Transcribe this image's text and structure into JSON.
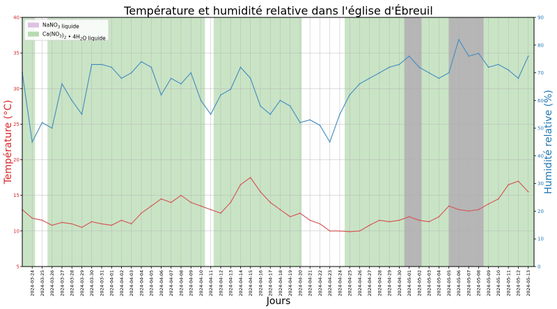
{
  "chart_data": {
    "type": "line",
    "title": "Température et humidité relative dans l'église d'Ébreuil",
    "xlabel": "Jours",
    "ylabel_left": "Température (°C)",
    "ylabel_right": "Humidité relative (%)",
    "ylim_left": [
      5,
      40
    ],
    "ylim_right": [
      0,
      90
    ],
    "yticks_left": [
      "5",
      "10",
      "15",
      "20",
      "25",
      "30",
      "35",
      "40"
    ],
    "yticks_right": [
      "0",
      "10",
      "20",
      "30",
      "40",
      "50",
      "60",
      "70",
      "80",
      "90"
    ],
    "grid": true,
    "legend_position": "top-left",
    "legend": [
      {
        "label": "NaNO",
        "sub": "3",
        "suffix": " liquide",
        "color": "#dfc1e3"
      },
      {
        "label": "Ca(NO",
        "sub": "3",
        "mid": ")",
        "sub2": "2",
        "suffix": " • 4H",
        "sub3": "2",
        "tail": "O liquide",
        "color": "#b7dbb1"
      }
    ],
    "colors": {
      "temperature": "#d45a5a",
      "humidity": "#4a90c0",
      "left_axis": "#d62728",
      "right_axis": "#1f77b4",
      "ca_zone": "#b7dbb1",
      "nano3_zone": "#a9a9a9"
    },
    "x_dates": [
      "2024-03-24",
      "2024-03-25",
      "2024-03-26",
      "2024-03-27",
      "2024-03-28",
      "2024-03-29",
      "2024-03-30",
      "2024-03-31",
      "2024-04-01",
      "2024-04-02",
      "2024-04-03",
      "2024-04-04",
      "2024-04-05",
      "2024-04-06",
      "2024-04-07",
      "2024-04-08",
      "2024-04-09",
      "2024-04-10",
      "2024-04-11",
      "2024-04-12",
      "2024-04-13",
      "2024-04-14",
      "2024-04-15",
      "2024-04-16",
      "2024-04-17",
      "2024-04-18",
      "2024-04-19",
      "2024-04-20",
      "2024-04-21",
      "2024-04-22",
      "2024-04-23",
      "2024-04-24",
      "2024-04-25",
      "2024-04-26",
      "2024-04-27",
      "2024-04-28",
      "2024-04-29",
      "2024-04-30",
      "2024-05-01",
      "2024-05-02",
      "2024-05-03",
      "2024-05-04",
      "2024-05-05",
      "2024-05-06",
      "2024-05-07",
      "2024-05-08",
      "2024-05-09",
      "2024-05-10",
      "2024-05-11",
      "2024-05-12",
      "2024-05-13"
    ],
    "x_range": [
      "2024-03-23T00:00",
      "2024-05-13T14:00"
    ],
    "ca_zones": [
      [
        "2024-03-23T00:00",
        "2024-03-24T07:00"
      ],
      [
        "2024-03-25T13:00",
        "2024-04-10T10:00"
      ],
      [
        "2024-04-11T07:00",
        "2024-04-20T04:00"
      ],
      [
        "2024-04-24T12:00",
        "2024-04-30T12:00"
      ],
      [
        "2024-05-02T06:00",
        "2024-05-05T00:00"
      ],
      [
        "2024-05-08T12:00",
        "2024-05-13T14:00"
      ]
    ],
    "nano3_zones": [
      [
        "2024-04-30T12:00",
        "2024-05-02T06:00"
      ],
      [
        "2024-05-05T00:00",
        "2024-05-08T12:00"
      ]
    ],
    "temperature_series": {
      "x": [
        "2024-03-23",
        "2024-03-24",
        "2024-03-25",
        "2024-03-26",
        "2024-03-27",
        "2024-03-28",
        "2024-03-29",
        "2024-03-30",
        "2024-03-31",
        "2024-04-01",
        "2024-04-02",
        "2024-04-03",
        "2024-04-04",
        "2024-04-05",
        "2024-04-06",
        "2024-04-07",
        "2024-04-08",
        "2024-04-09",
        "2024-04-10",
        "2024-04-11",
        "2024-04-12",
        "2024-04-13",
        "2024-04-14",
        "2024-04-15",
        "2024-04-16",
        "2024-04-17",
        "2024-04-18",
        "2024-04-19",
        "2024-04-20",
        "2024-04-21",
        "2024-04-22",
        "2024-04-23",
        "2024-04-24",
        "2024-04-25",
        "2024-04-26",
        "2024-04-27",
        "2024-04-28",
        "2024-04-29",
        "2024-04-30",
        "2024-05-01",
        "2024-05-02",
        "2024-05-03",
        "2024-05-04",
        "2024-05-05",
        "2024-05-06",
        "2024-05-07",
        "2024-05-08",
        "2024-05-09",
        "2024-05-10",
        "2024-05-11",
        "2024-05-12",
        "2024-05-13"
      ],
      "y": [
        13.0,
        11.8,
        11.5,
        10.8,
        11.2,
        11.0,
        10.5,
        11.3,
        11.0,
        10.8,
        11.5,
        11.0,
        12.5,
        13.5,
        14.5,
        14.0,
        15.0,
        14.0,
        13.5,
        13.0,
        12.5,
        14.0,
        16.5,
        17.5,
        15.5,
        14.0,
        13.0,
        12.0,
        12.5,
        11.5,
        11.0,
        10.0,
        10.0,
        9.9,
        10.0,
        10.8,
        11.5,
        11.3,
        11.5,
        12.0,
        11.5,
        11.3,
        12.0,
        13.5,
        13.0,
        12.8,
        13.0,
        13.8,
        14.5,
        16.5,
        17.0,
        15.5
      ]
    },
    "humidity_series": {
      "x": [
        "2024-03-23",
        "2024-03-24",
        "2024-03-25",
        "2024-03-26",
        "2024-03-27",
        "2024-03-28",
        "2024-03-29",
        "2024-03-30",
        "2024-03-31",
        "2024-04-01",
        "2024-04-02",
        "2024-04-03",
        "2024-04-04",
        "2024-04-05",
        "2024-04-06",
        "2024-04-07",
        "2024-04-08",
        "2024-04-09",
        "2024-04-10",
        "2024-04-11",
        "2024-04-12",
        "2024-04-13",
        "2024-04-14",
        "2024-04-15",
        "2024-04-16",
        "2024-04-17",
        "2024-04-18",
        "2024-04-19",
        "2024-04-20",
        "2024-04-21",
        "2024-04-22",
        "2024-04-23",
        "2024-04-24",
        "2024-04-25",
        "2024-04-26",
        "2024-04-27",
        "2024-04-28",
        "2024-04-29",
        "2024-04-30",
        "2024-05-01",
        "2024-05-02",
        "2024-05-03",
        "2024-05-04",
        "2024-05-05",
        "2024-05-06",
        "2024-05-07",
        "2024-05-08",
        "2024-05-09",
        "2024-05-10",
        "2024-05-11",
        "2024-05-12",
        "2024-05-13"
      ],
      "y": [
        70,
        45,
        52,
        50,
        66,
        60,
        55,
        73,
        73,
        72,
        68,
        70,
        74,
        72,
        62,
        68,
        66,
        70,
        60,
        55,
        62,
        64,
        72,
        68,
        58,
        55,
        60,
        58,
        52,
        53,
        51,
        45,
        55,
        62,
        66,
        68,
        70,
        72,
        73,
        76,
        72,
        70,
        68,
        70,
        82,
        76,
        77,
        72,
        73,
        71,
        68,
        76
      ]
    }
  }
}
